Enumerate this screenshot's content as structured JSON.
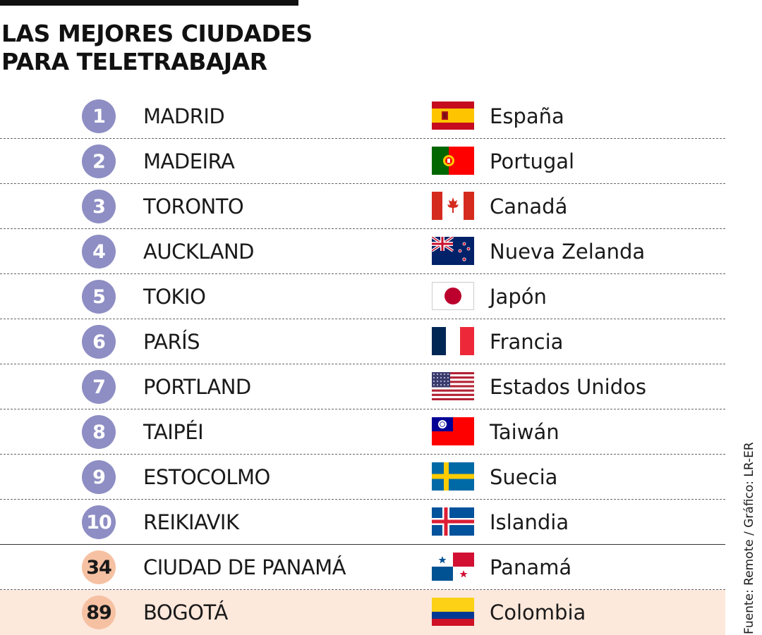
{
  "title_line1": "LAS MEJORES CIUDADES",
  "title_line2": "PARA TELETRABAJAR",
  "source": "Fuente: Remote / Gráfico: LR-ER",
  "colors": {
    "top_rank_circle": "#8e8ec4",
    "other_rank_circle": "#f6c1a3",
    "highlight_row": "#fde8dc"
  },
  "chart_data": {
    "type": "table",
    "title": "LAS MEJORES CIUDADES PARA TELETRABAJAR",
    "columns": [
      "rank",
      "city",
      "flag",
      "country"
    ],
    "rows": [
      {
        "rank": "1",
        "city": "MADRID",
        "country": "España",
        "flag": "spain-flag-icon"
      },
      {
        "rank": "2",
        "city": "MADEIRA",
        "country": "Portugal",
        "flag": "portugal-flag-icon"
      },
      {
        "rank": "3",
        "city": "TORONTO",
        "country": "Canadá",
        "flag": "canada-flag-icon"
      },
      {
        "rank": "4",
        "city": "AUCKLAND",
        "country": "Nueva Zelanda",
        "flag": "new-zealand-flag-icon"
      },
      {
        "rank": "5",
        "city": "TOKIO",
        "country": "Japón",
        "flag": "japan-flag-icon"
      },
      {
        "rank": "6",
        "city": "PARÍS",
        "country": "Francia",
        "flag": "france-flag-icon"
      },
      {
        "rank": "7",
        "city": "PORTLAND",
        "country": "Estados Unidos",
        "flag": "usa-flag-icon"
      },
      {
        "rank": "8",
        "city": "TAIPÉI",
        "country": "Taiwán",
        "flag": "taiwan-flag-icon"
      },
      {
        "rank": "9",
        "city": "ESTOCOLMO",
        "country": "Suecia",
        "flag": "sweden-flag-icon"
      },
      {
        "rank": "10",
        "city": "REIKIAVIK",
        "country": "Islandia",
        "flag": "iceland-flag-icon"
      },
      {
        "rank": "34",
        "city": "CIUDAD DE PANAMÁ",
        "country": "Panamá",
        "flag": "panama-flag-icon"
      },
      {
        "rank": "89",
        "city": "BOGOTÁ",
        "country": "Colombia",
        "flag": "colombia-flag-icon"
      }
    ]
  }
}
